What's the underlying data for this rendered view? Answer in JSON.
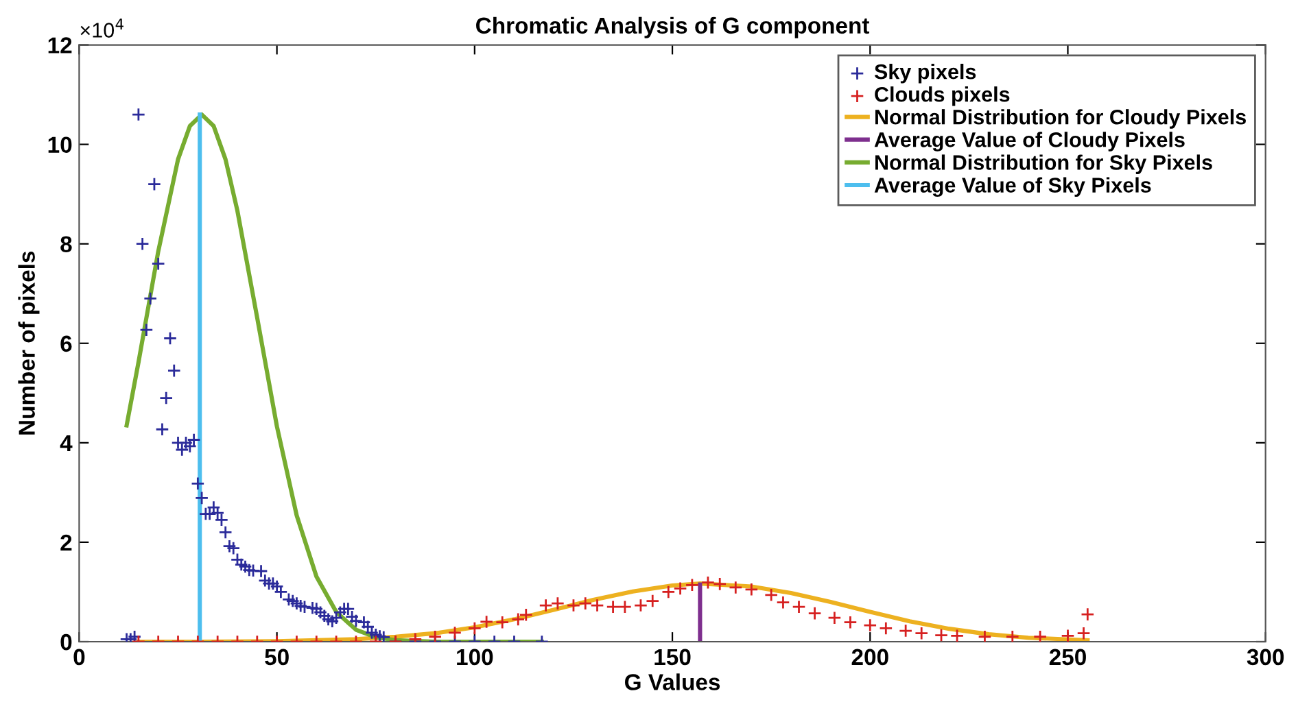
{
  "chart_data": {
    "type": "scatter",
    "title": "Chromatic Analysis of G component",
    "xlabel": "G Values",
    "ylabel": "Number of pixels",
    "xlim": [
      0,
      300
    ],
    "xticks": [
      0,
      50,
      100,
      150,
      200,
      250,
      300
    ],
    "ylim": [
      0,
      12
    ],
    "yticks": [
      0,
      2,
      4,
      6,
      8,
      10,
      12
    ],
    "annotations": [
      "×10$^{4}$"
    ],
    "grid": false,
    "legend": "top right",
    "series": [
      {
        "name": "Sky pixels",
        "marker": "cross",
        "color": "#2b2b9a",
        "x": [
          12,
          13,
          14,
          15,
          16,
          17,
          18,
          19,
          20,
          21,
          22,
          23,
          24,
          25,
          26,
          27,
          28,
          29,
          30,
          31,
          32,
          33,
          34,
          35,
          36,
          37,
          38,
          39,
          40,
          41,
          42,
          43,
          44,
          46,
          47,
          48,
          49,
          50,
          51,
          53,
          54,
          55,
          56,
          57,
          59,
          60,
          61,
          62,
          63,
          64,
          65,
          66,
          67,
          68,
          69,
          70,
          72,
          73,
          74,
          75,
          76,
          77,
          80,
          85,
          90,
          95,
          100,
          105,
          110,
          117
        ],
        "values": [
          0.05,
          0.05,
          0.1,
          10.6,
          8.0,
          6.27,
          6.9,
          9.2,
          7.6,
          4.27,
          4.9,
          6.1,
          5.45,
          4.0,
          3.86,
          4.0,
          3.93,
          4.06,
          3.18,
          2.89,
          2.57,
          2.57,
          2.7,
          2.59,
          2.45,
          2.2,
          1.92,
          1.88,
          1.65,
          1.55,
          1.51,
          1.44,
          1.43,
          1.42,
          1.23,
          1.17,
          1.17,
          1.11,
          1.0,
          0.85,
          0.82,
          0.77,
          0.72,
          0.7,
          0.68,
          0.66,
          0.59,
          0.52,
          0.45,
          0.41,
          0.48,
          0.59,
          0.66,
          0.66,
          0.5,
          0.42,
          0.39,
          0.3,
          0.18,
          0.14,
          0.11,
          0.09,
          0,
          0,
          0,
          0,
          0,
          0,
          0,
          0
        ]
      },
      {
        "name": "Clouds pixels",
        "marker": "cross",
        "color": "#d62020",
        "x": [
          15,
          20,
          25,
          30,
          35,
          40,
          45,
          50,
          55,
          60,
          65,
          70,
          75,
          80,
          85,
          90,
          95,
          100,
          103,
          107,
          111,
          113,
          118,
          121,
          125,
          128,
          131,
          135,
          138,
          142,
          145,
          149,
          152,
          155,
          159,
          162,
          166,
          170,
          175,
          178,
          182,
          186,
          191,
          195,
          200,
          204,
          209,
          213,
          218,
          222,
          229,
          236,
          243,
          250,
          254,
          255
        ],
        "values": [
          0,
          0,
          0,
          0,
          0,
          0,
          0,
          0,
          0,
          0,
          0,
          0,
          0,
          0,
          0.05,
          0.1,
          0.18,
          0.27,
          0.4,
          0.39,
          0.45,
          0.54,
          0.73,
          0.77,
          0.73,
          0.77,
          0.73,
          0.7,
          0.7,
          0.73,
          0.82,
          1.0,
          1.07,
          1.14,
          1.19,
          1.16,
          1.09,
          1.05,
          0.94,
          0.79,
          0.7,
          0.57,
          0.48,
          0.39,
          0.33,
          0.27,
          0.22,
          0.17,
          0.13,
          0.12,
          0.1,
          0.1,
          0.1,
          0.12,
          0.17,
          0.55
        ]
      },
      {
        "name": "Normal Distribution for Cloudy Pixels",
        "type": "line",
        "marker": "none",
        "color": "#edb120",
        "x": [
          15,
          30,
          50,
          70,
          80,
          90,
          100,
          110,
          120,
          130,
          140,
          150,
          157,
          170,
          180,
          190,
          200,
          210,
          220,
          230,
          240,
          255
        ],
        "values": [
          0,
          0,
          0.01,
          0.05,
          0.1,
          0.17,
          0.29,
          0.45,
          0.64,
          0.84,
          1.01,
          1.13,
          1.17,
          1.11,
          0.98,
          0.8,
          0.6,
          0.41,
          0.26,
          0.15,
          0.08,
          0.03
        ]
      },
      {
        "name": "Average Value of Cloudy Pixels",
        "type": "line",
        "marker": "none",
        "color": "#7e2f8e",
        "x": [
          157,
          157
        ],
        "values": [
          0,
          1.15
        ]
      },
      {
        "name": "Normal Distribution for Sky Pixels",
        "type": "line",
        "marker": "none",
        "color": "#77ac30",
        "x": [
          12,
          15,
          20,
          25,
          28,
          31,
          34,
          37,
          40,
          45,
          50,
          55,
          60,
          65,
          70,
          75,
          80,
          90,
          117
        ],
        "values": [
          4.35,
          5.62,
          7.85,
          9.7,
          10.37,
          10.6,
          10.37,
          9.7,
          8.67,
          6.52,
          4.33,
          2.54,
          1.31,
          0.6,
          0.24,
          0.09,
          0.03,
          0,
          0
        ]
      },
      {
        "name": "Average Value of Sky Pixels",
        "type": "line",
        "marker": "none",
        "color": "#4dbeee",
        "x": [
          30.5,
          30.5
        ],
        "values": [
          0,
          10.6
        ]
      }
    ]
  }
}
